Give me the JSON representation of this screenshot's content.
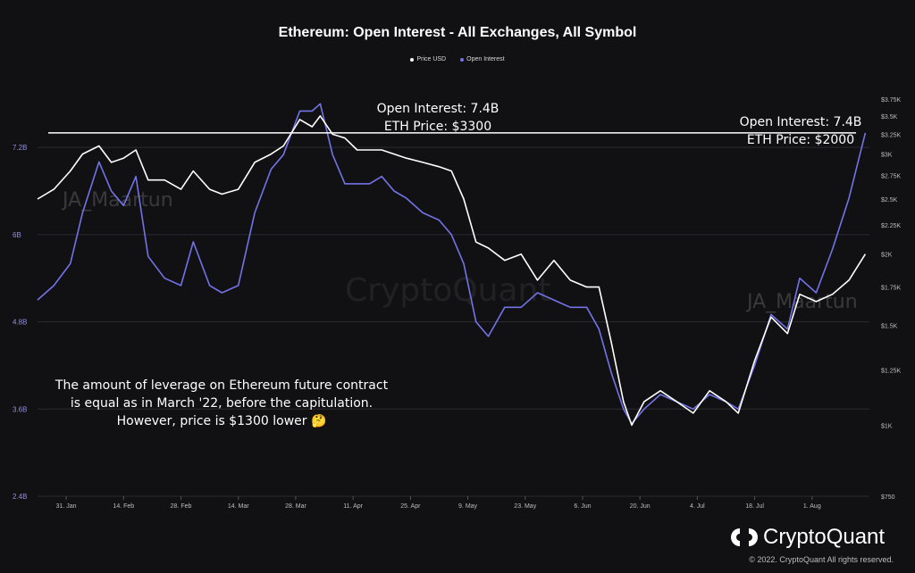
{
  "chart_data": {
    "type": "line",
    "title": "Ethereum: Open Interest - All Exchanges, All Symbol",
    "x_ticks": [
      "31. Jan",
      "14. Feb",
      "28. Feb",
      "14. Mar",
      "28. Mar",
      "11. Apr",
      "25. Apr",
      "9. May",
      "23. May",
      "6. Jun",
      "20. Jun",
      "4. Jul",
      "18. Jul",
      "1. Aug"
    ],
    "xlim": [
      "2022-01-24",
      "2022-08-15"
    ],
    "y_left": {
      "scale": "linear",
      "ylim": [
        2.4,
        8.0
      ],
      "tick_values": [
        2.4,
        3.6,
        4.8,
        6.0,
        7.2
      ],
      "tick_labels": [
        "2.4B",
        "3.6B",
        "4.8B",
        "6B",
        "7.2B"
      ]
    },
    "y_right": {
      "scale": "log",
      "ylim": [
        750,
        3900
      ],
      "tick_values": [
        750,
        1000,
        1250,
        1500,
        1750,
        2000,
        2250,
        2500,
        2750,
        3000,
        3250,
        3500,
        3750
      ],
      "tick_labels": [
        "$750",
        "$1K",
        "$1.25K",
        "$1.5K",
        "$1.75K",
        "$2K",
        "$2.25K",
        "$2.5K",
        "$2.75K",
        "$3K",
        "$3.25K",
        "$3.5K",
        "$3.75K"
      ]
    },
    "grid": "horizontal",
    "legend_position": "top-center",
    "series": [
      {
        "name": "Price USD",
        "axis": "right",
        "color": "#ffffff",
        "x": [
          "2022-01-24",
          "2022-01-28",
          "2022-02-01",
          "2022-02-04",
          "2022-02-08",
          "2022-02-11",
          "2022-02-14",
          "2022-02-17",
          "2022-02-20",
          "2022-02-24",
          "2022-02-28",
          "2022-03-03",
          "2022-03-07",
          "2022-03-10",
          "2022-03-14",
          "2022-03-18",
          "2022-03-22",
          "2022-03-25",
          "2022-03-29",
          "2022-04-01",
          "2022-04-03",
          "2022-04-06",
          "2022-04-09",
          "2022-04-12",
          "2022-04-15",
          "2022-04-18",
          "2022-04-21",
          "2022-04-24",
          "2022-04-28",
          "2022-05-02",
          "2022-05-05",
          "2022-05-08",
          "2022-05-11",
          "2022-05-14",
          "2022-05-18",
          "2022-05-22",
          "2022-05-26",
          "2022-05-30",
          "2022-06-03",
          "2022-06-07",
          "2022-06-10",
          "2022-06-13",
          "2022-06-16",
          "2022-06-18",
          "2022-06-21",
          "2022-06-25",
          "2022-06-29",
          "2022-07-03",
          "2022-07-07",
          "2022-07-11",
          "2022-07-14",
          "2022-07-18",
          "2022-07-22",
          "2022-07-26",
          "2022-07-29",
          "2022-08-02",
          "2022-08-06",
          "2022-08-10",
          "2022-08-14"
        ],
        "y": [
          2500,
          2600,
          2800,
          3000,
          3100,
          2900,
          2950,
          3050,
          2700,
          2700,
          2600,
          2800,
          2600,
          2550,
          2600,
          2900,
          3000,
          3100,
          3450,
          3350,
          3500,
          3250,
          3200,
          3050,
          3050,
          3050,
          3000,
          2950,
          2900,
          2850,
          2800,
          2500,
          2100,
          2050,
          1950,
          2000,
          1800,
          1950,
          1800,
          1750,
          1750,
          1400,
          1100,
          1000,
          1100,
          1150,
          1100,
          1050,
          1150,
          1100,
          1050,
          1300,
          1550,
          1450,
          1700,
          1650,
          1700,
          1800,
          2000
        ]
      },
      {
        "name": "Open Interest",
        "axis": "left",
        "color": "#7373e8",
        "x": [
          "2022-01-24",
          "2022-01-28",
          "2022-02-01",
          "2022-02-04",
          "2022-02-08",
          "2022-02-11",
          "2022-02-14",
          "2022-02-17",
          "2022-02-20",
          "2022-02-24",
          "2022-02-28",
          "2022-03-03",
          "2022-03-07",
          "2022-03-10",
          "2022-03-14",
          "2022-03-18",
          "2022-03-22",
          "2022-03-25",
          "2022-03-29",
          "2022-04-01",
          "2022-04-03",
          "2022-04-06",
          "2022-04-09",
          "2022-04-12",
          "2022-04-15",
          "2022-04-18",
          "2022-04-21",
          "2022-04-24",
          "2022-04-28",
          "2022-05-02",
          "2022-05-05",
          "2022-05-08",
          "2022-05-11",
          "2022-05-14",
          "2022-05-18",
          "2022-05-22",
          "2022-05-26",
          "2022-05-30",
          "2022-06-03",
          "2022-06-07",
          "2022-06-10",
          "2022-06-13",
          "2022-06-16",
          "2022-06-18",
          "2022-06-21",
          "2022-06-25",
          "2022-06-29",
          "2022-07-03",
          "2022-07-07",
          "2022-07-11",
          "2022-07-14",
          "2022-07-18",
          "2022-07-22",
          "2022-07-26",
          "2022-07-29",
          "2022-08-02",
          "2022-08-06",
          "2022-08-10",
          "2022-08-14"
        ],
        "y": [
          5.1,
          5.3,
          5.6,
          6.3,
          7.0,
          6.6,
          6.4,
          6.8,
          5.7,
          5.4,
          5.3,
          5.9,
          5.3,
          5.2,
          5.3,
          6.3,
          6.9,
          7.1,
          7.7,
          7.7,
          7.8,
          7.1,
          6.7,
          6.7,
          6.7,
          6.8,
          6.6,
          6.5,
          6.3,
          6.2,
          6.0,
          5.6,
          4.8,
          4.6,
          5.0,
          5.0,
          5.2,
          5.1,
          5.0,
          5.0,
          4.7,
          4.1,
          3.6,
          3.4,
          3.6,
          3.8,
          3.7,
          3.6,
          3.8,
          3.7,
          3.6,
          4.2,
          4.9,
          4.7,
          5.4,
          5.2,
          5.8,
          6.5,
          7.4
        ]
      }
    ],
    "reference_line": {
      "value": 7.4,
      "axis": "left",
      "color": "#ffffff"
    }
  },
  "legend": {
    "price_label": "Price USD",
    "oi_label": "Open Interest"
  },
  "annotations": {
    "left": {
      "line1": "Open Interest: 7.4B",
      "line2": "ETH Price: $3300"
    },
    "right": {
      "line1": "Open Interest: 7.4B",
      "line2": "ETH Price: $2000"
    },
    "note": "The amount of leverage on Ethereum future contract is equal as in March '22, before the capitulation. However, price is $1300 lower 🤔"
  },
  "watermarks": {
    "author": "JA_Maartun",
    "brand": "CryptoQuant"
  },
  "branding": {
    "logo_icon": "cryptoquant-logo-icon",
    "name": "CryptoQuant",
    "copyright": "© 2022. CryptoQuant All rights reserved."
  }
}
